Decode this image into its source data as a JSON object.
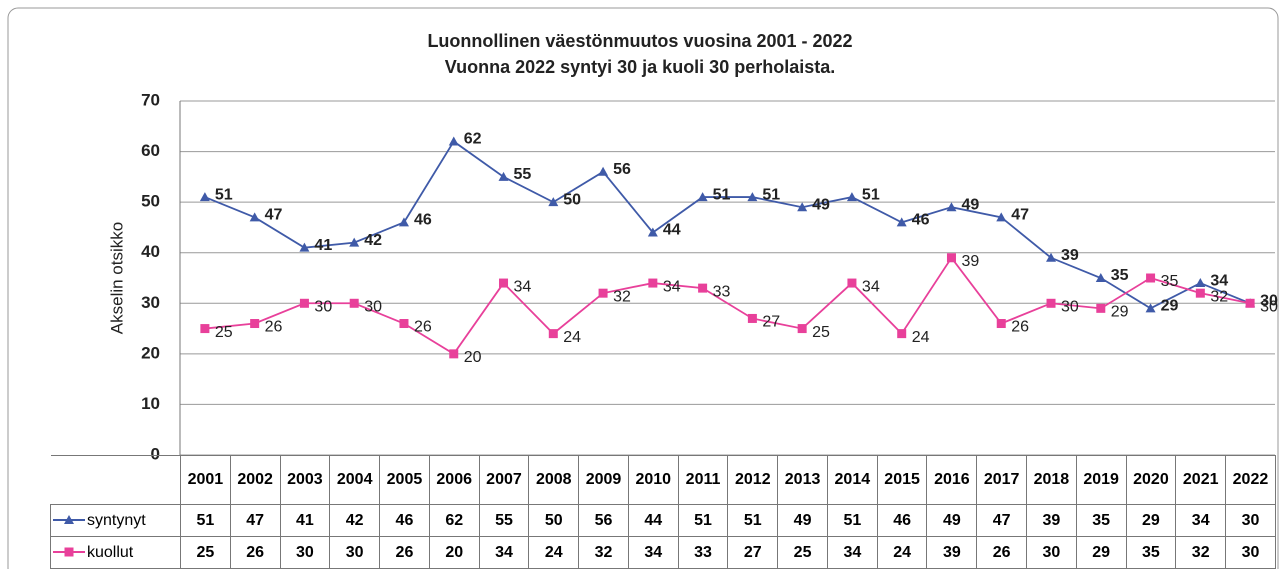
{
  "chart_data": {
    "type": "line",
    "title": "Luonnollinen väestönmuutos vuosina 2001 - 2022",
    "subtitle": "Vuonna 2022 syntyi 30 ja kuoli 30 perholaista.",
    "y_label": "Akselin otsikko",
    "categories": [
      "2001",
      "2002",
      "2003",
      "2004",
      "2005",
      "2006",
      "2007",
      "2008",
      "2009",
      "2010",
      "2011",
      "2012",
      "2013",
      "2014",
      "2015",
      "2016",
      "2017",
      "2018",
      "2019",
      "2020",
      "2021",
      "2022"
    ],
    "series": [
      {
        "name": "syntynyt",
        "color": "#3f5aa8",
        "marker": "triangle",
        "values": [
          51,
          47,
          41,
          42,
          46,
          62,
          55,
          50,
          56,
          44,
          51,
          51,
          49,
          51,
          46,
          49,
          47,
          39,
          35,
          29,
          34,
          30
        ]
      },
      {
        "name": "kuollut",
        "color": "#e8409a",
        "marker": "square",
        "values": [
          25,
          26,
          30,
          30,
          26,
          20,
          34,
          24,
          32,
          34,
          33,
          27,
          25,
          34,
          24,
          39,
          26,
          30,
          29,
          35,
          32,
          30
        ]
      }
    ],
    "ylim": [
      0,
      70
    ],
    "yticks": [
      0,
      10,
      20,
      30,
      40,
      50,
      60,
      70
    ],
    "grid": true
  }
}
